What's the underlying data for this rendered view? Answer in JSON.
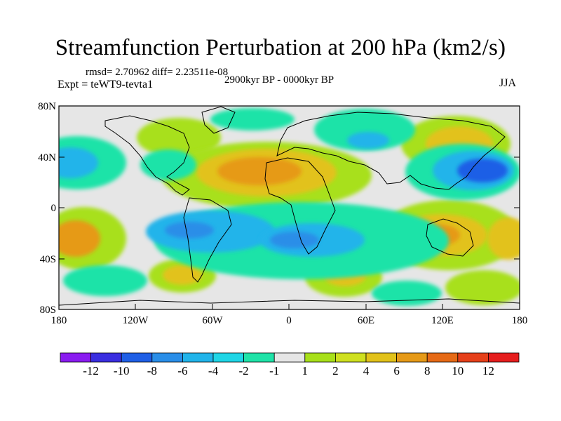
{
  "title": "Streamfunction Perturbation at 200 hPa (km2/s)",
  "stats": "rmsd= 2.70962 diff= 2.23511e-08",
  "expt": "Expt = teWT9-tevta1",
  "period": "2900kyr BP - 0000kyr BP",
  "season": "JJA",
  "lat_ticks": [
    "80N",
    "40N",
    "0",
    "40S",
    "80S"
  ],
  "lon_ticks": [
    "180",
    "120W",
    "60W",
    "0",
    "60E",
    "120E",
    "180"
  ],
  "colorbar": {
    "labels": [
      "-12",
      "-10",
      "-8",
      "-6",
      "-4",
      "-2",
      "-1",
      "1",
      "2",
      "4",
      "6",
      "8",
      "10",
      "12"
    ],
    "colors": [
      "#8a1cf0",
      "#3a2ee0",
      "#1f5fe6",
      "#2a8ee8",
      "#21b4ea",
      "#1fd6e6",
      "#1fe3a8",
      "#e6e6e6",
      "#a8e01a",
      "#cfe020",
      "#e2c21a",
      "#e69a18",
      "#e66a16",
      "#e6401a",
      "#e61e1e"
    ]
  },
  "map": {
    "ocean": "#e6e6e6",
    "coast": "#000000"
  }
}
